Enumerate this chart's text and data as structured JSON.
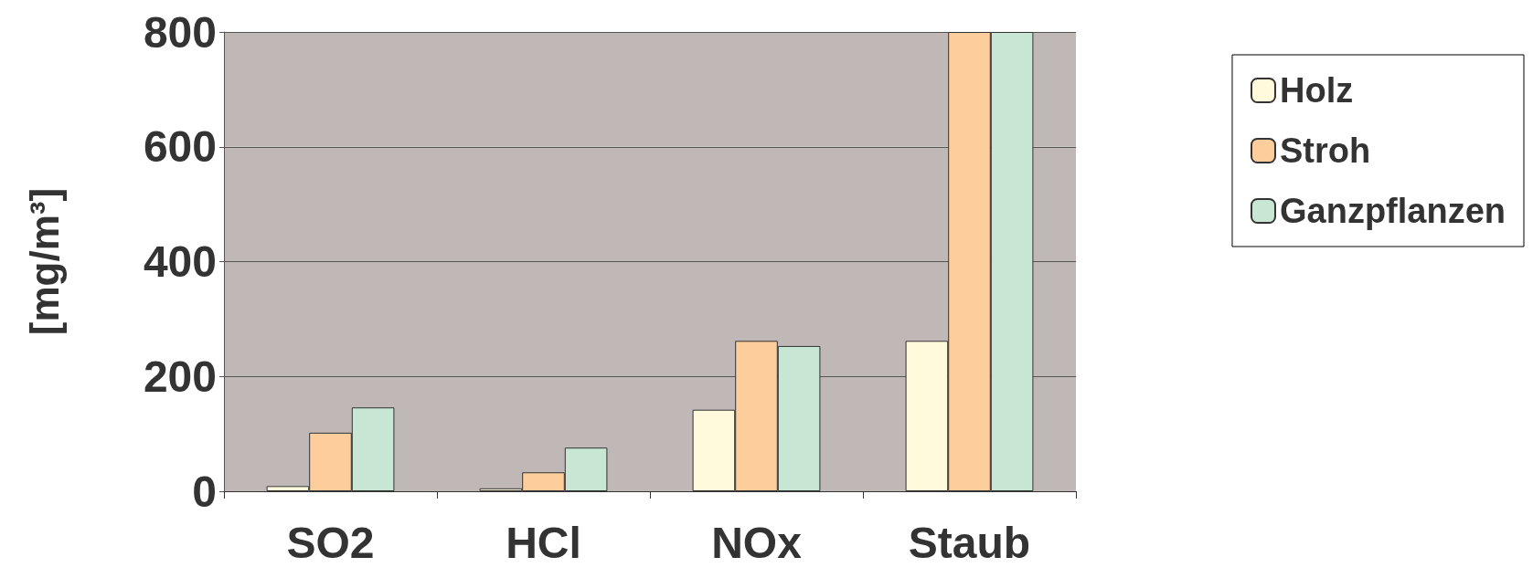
{
  "chart_data": {
    "type": "bar",
    "ylabel": "[mg/m³]",
    "categories": [
      "SO2",
      "HCl",
      "NOx",
      "Staub"
    ],
    "series": [
      {
        "name": "Holz",
        "color": "#fffadc",
        "values": [
          9,
          5,
          142,
          262
        ]
      },
      {
        "name": "Stroh",
        "color": "#fdcd9b",
        "values": [
          102,
          33,
          262,
          800
        ]
      },
      {
        "name": "Ganzpflanzen",
        "color": "#c8e6d4",
        "values": [
          146,
          76,
          253,
          800
        ]
      }
    ],
    "ylim": [
      0,
      800
    ],
    "yticks": [
      0,
      200,
      400,
      600,
      800
    ],
    "grid": "y",
    "legend": "top right"
  }
}
